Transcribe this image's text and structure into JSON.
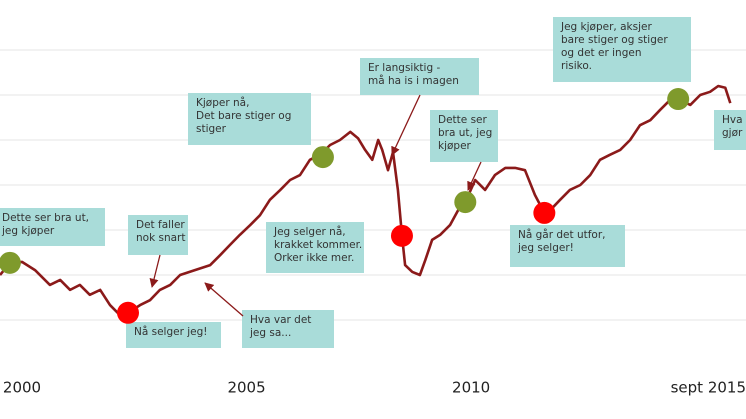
{
  "chart_data": {
    "type": "line",
    "color": "#8b1a1a",
    "x": [
      1999.51,
      1999.73,
      2000,
      2000.29,
      2000.62,
      2000.85,
      2001.07,
      2001.29,
      2001.51,
      2001.74,
      2001.96,
      2002.18,
      2002.36,
      2002.63,
      2002.85,
      2003.07,
      2003.3,
      2003.52,
      2003.85,
      2004.19,
      2004.41,
      2004.63,
      2004.85,
      2005.08,
      2005.3,
      2005.52,
      2005.75,
      2005.97,
      2006.19,
      2006.41,
      2006.64,
      2006.86,
      2007.08,
      2007.31,
      2007.48,
      2007.64,
      2007.8,
      2007.93,
      2008.02,
      2008.15,
      2008.26,
      2008.37,
      2008.46,
      2008.53,
      2008.69,
      2008.86,
      2008.98,
      2009.13,
      2009.31,
      2009.53,
      2009.71,
      2009.87,
      2010.09,
      2010.31,
      2010.53,
      2010.76,
      2010.98,
      2011.2,
      2011.42,
      2011.63,
      2011.76,
      2011.98,
      2012.2,
      2012.43,
      2012.65,
      2012.87,
      2013.09,
      2013.32,
      2013.54,
      2013.76,
      2013.99,
      2014.21,
      2014.43,
      2014.61,
      2014.88,
      2015.1,
      2015.32,
      2015.5,
      2015.66,
      2015.77
    ],
    "values": [
      2.0,
      2.27,
      2.29,
      2.11,
      1.78,
      1.89,
      1.67,
      1.78,
      1.56,
      1.67,
      1.33,
      1.11,
      1.16,
      1.33,
      1.44,
      1.67,
      1.78,
      2.0,
      2.11,
      2.22,
      2.44,
      2.67,
      2.89,
      3.11,
      3.33,
      3.67,
      3.89,
      4.11,
      4.22,
      4.56,
      4.67,
      4.89,
      5.0,
      5.18,
      5.04,
      4.78,
      4.56,
      5.0,
      4.78,
      4.33,
      4.73,
      3.89,
      2.87,
      2.22,
      2.07,
      2.0,
      2.33,
      2.78,
      2.89,
      3.11,
      3.44,
      3.62,
      4.11,
      3.89,
      4.22,
      4.38,
      4.38,
      4.33,
      3.78,
      3.38,
      3.44,
      3.67,
      3.89,
      4.0,
      4.22,
      4.56,
      4.67,
      4.78,
      5.0,
      5.33,
      5.44,
      5.67,
      5.89,
      5.91,
      5.78,
      6.0,
      6.07,
      6.2,
      6.16,
      5.82
    ],
    "xlim": [
      1999.51,
      2016.12
    ],
    "ylim": [
      0,
      8
    ],
    "xticks": [
      2000,
      2005,
      2010,
      {
        "value": 2015.67,
        "label": "sept 2015"
      }
    ],
    "yticks": [
      1,
      2,
      3,
      4,
      5,
      6,
      7
    ],
    "grid": true,
    "markers": [
      {
        "x": 1999.73,
        "y": 2.27,
        "color": "#7f9a2c"
      },
      {
        "x": 2002.36,
        "y": 1.16,
        "color": "#ff0000"
      },
      {
        "x": 2006.7,
        "y": 4.62,
        "color": "#7f9a2c"
      },
      {
        "x": 2008.46,
        "y": 2.87,
        "color": "#ff0000"
      },
      {
        "x": 2009.87,
        "y": 3.62,
        "color": "#7f9a2c"
      },
      {
        "x": 2011.63,
        "y": 3.38,
        "color": "#ff0000"
      },
      {
        "x": 2014.61,
        "y": 5.91,
        "color": "#7f9a2c"
      }
    ],
    "annotations": [
      {
        "lines": [
          "Dette ser bra ut,",
          "jeg kjøper"
        ]
      },
      {
        "lines": [
          "Det faller",
          "nok snart"
        ]
      },
      {
        "lines": [
          "Nå selger jeg!"
        ]
      },
      {
        "lines": [
          "Hva var det",
          "jeg sa..."
        ]
      },
      {
        "lines": [
          "Kjøper  nå,",
          "Det bare stiger og",
          "stiger"
        ]
      },
      {
        "lines": [
          "Jeg selger nå,",
          "krakket kommer.",
          "Orker ikke mer."
        ]
      },
      {
        "lines": [
          "Er langsiktig  -",
          "må ha is i magen"
        ]
      },
      {
        "lines": [
          "Dette ser",
          "bra ut,  jeg",
          "kjøper"
        ]
      },
      {
        "lines": [
          "Nå går det utfor,",
          "jeg selger!"
        ]
      },
      {
        "lines": [
          "Jeg kjøper,  aksjer",
          "bare stiger og stiger",
          "og det er ingen",
          "risiko."
        ]
      },
      {
        "lines": [
          "Hva",
          "gjør"
        ]
      }
    ]
  }
}
